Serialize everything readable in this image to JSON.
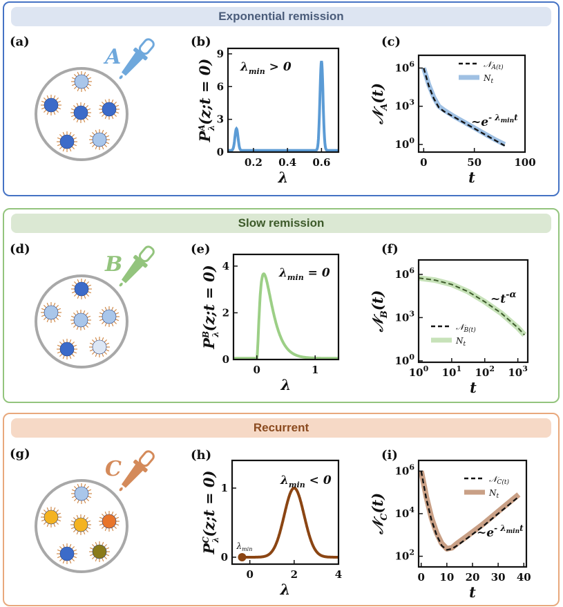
{
  "rows": [
    {
      "banner": "Exponential remission",
      "border": "#4472c4",
      "banner_bg": "#dde5f2",
      "banner_fg": "#4a5c7a",
      "drug_letter": "A",
      "drug_color": "#6fa8dc",
      "cell_colors": [
        "#a9c6ea",
        "#3c6bc9",
        "#3c6bc9",
        "#3c6bc9",
        "#3c6bc9",
        "#a9c6ea"
      ],
      "panel_labels": [
        "(a)",
        "(b)",
        "(c)"
      ],
      "dist_annotation": "λmin > 0",
      "time_annotation": "~e^(-λmin t)",
      "legend": [
        "𝒩A(t)",
        "Nt"
      ]
    },
    {
      "banner": "Slow remission",
      "border": "#93c47d",
      "banner_bg": "#dbe8d3",
      "banner_fg": "#3d5a2a",
      "drug_letter": "B",
      "drug_color": "#93c47d",
      "cell_colors": [
        "#3c6bc9",
        "#a9c6ea",
        "#a9c6ea",
        "#a9c6ea",
        "#3c6bc9",
        "#dde7f5"
      ],
      "panel_labels": [
        "(d)",
        "(e)",
        "(f)"
      ],
      "dist_annotation": "λmin = 0",
      "time_annotation": "~t^(-α)",
      "legend": [
        "𝒩B(t)",
        "Nt"
      ]
    },
    {
      "banner": "Recurrent",
      "border": "#e8a87c",
      "banner_bg": "#f6d9c6",
      "banner_fg": "#8a4a1f",
      "drug_letter": "C",
      "drug_color": "#d48a5a",
      "cell_colors": [
        "#a9c6ea",
        "#f4b321",
        "#f4b321",
        "#e8752a",
        "#3c6bc9",
        "#8a7a1a"
      ],
      "panel_labels": [
        "(g)",
        "(h)",
        "(i)"
      ],
      "dist_annotation": "λmin < 0",
      "time_annotation": "~e^(-λmin t)",
      "legend": [
        "𝒩C(t)",
        "Nt"
      ],
      "lambda_min_marker": "λmin"
    }
  ],
  "chart_data": [
    {
      "id": "b",
      "type": "line",
      "color": "#5b9bd5",
      "xlabel": "λ",
      "ylabel": "P^A_λ(z;t = 0)",
      "xlim": [
        0.05,
        0.7
      ],
      "ylim": [
        0,
        9.5
      ],
      "xticks": [
        0.2,
        0.4,
        0.6
      ],
      "xtick_labels": [
        "0.2",
        "0.4",
        "0.6"
      ],
      "yticks": [
        0,
        3,
        6,
        9
      ],
      "ytick_labels": [
        "0",
        "3",
        "6",
        "9"
      ],
      "peaks": [
        {
          "center": 0.1,
          "height": 2.0
        },
        {
          "center": 0.6,
          "height": 8.2
        }
      ]
    },
    {
      "id": "c",
      "type": "line",
      "scale": "semilog-y",
      "xlabel": "t",
      "ylabel": "𝒩A(t)",
      "xlim": [
        -5,
        100
      ],
      "ylim_log10": [
        -0.6,
        7
      ],
      "xticks": [
        0,
        50,
        100
      ],
      "xtick_labels": [
        "0",
        "50",
        "100"
      ],
      "yticks_log10": [
        0,
        3,
        6
      ],
      "ytick_labels": [
        "10^0",
        "10^3",
        "10^6"
      ],
      "series": [
        {
          "name": "𝒩A(t)",
          "style": "dashed",
          "color": "#111111",
          "x": [
            0,
            5,
            10,
            15,
            20,
            30,
            40,
            50,
            60,
            70,
            80
          ],
          "log10_y": [
            6.0,
            4.6,
            3.6,
            2.9,
            2.6,
            2.15,
            1.7,
            1.25,
            0.8,
            0.35,
            -0.1
          ]
        },
        {
          "name": "Nt",
          "style": "band",
          "color": "#9fc0e3",
          "x": [
            0,
            5,
            10,
            15,
            20,
            30,
            40,
            50,
            60,
            70,
            80
          ],
          "log10_y": [
            6.0,
            4.7,
            3.7,
            3.0,
            2.7,
            2.2,
            1.75,
            1.3,
            0.85,
            0.4,
            0.0
          ]
        }
      ]
    },
    {
      "id": "e",
      "type": "line",
      "color": "#9ccf86",
      "xlabel": "λ",
      "ylabel": "P^B_λ(z;t = 0)",
      "xlim": [
        -0.4,
        1.4
      ],
      "ylim": [
        0,
        4.5
      ],
      "xticks": [
        0,
        1
      ],
      "xtick_labels": [
        "0",
        "1"
      ],
      "yticks": [
        0,
        2,
        4
      ],
      "ytick_labels": [
        "0",
        "2",
        "4"
      ],
      "peak": {
        "start": 0.0,
        "mode": 0.12,
        "height": 3.7
      }
    },
    {
      "id": "f",
      "type": "line",
      "scale": "log-log",
      "xlabel": "t",
      "ylabel": "𝒩B(t)",
      "xlim_log10": [
        0,
        3.3
      ],
      "ylim_log10": [
        -0.1,
        7
      ],
      "xticks_log10": [
        0,
        1,
        2,
        3
      ],
      "xtick_labels": [
        "10^0",
        "10^1",
        "10^2",
        "10^3"
      ],
      "yticks_log10": [
        0,
        3,
        6
      ],
      "ytick_labels": [
        "10^0",
        "10^3",
        "10^6"
      ],
      "series": [
        {
          "name": "𝒩B(t)",
          "style": "dashed",
          "color": "#3d5a2a",
          "log10_x": [
            0,
            0.5,
            1,
            1.5,
            2,
            2.5,
            3,
            3.2
          ],
          "log10_y": [
            5.75,
            5.6,
            5.3,
            4.8,
            4.1,
            3.3,
            2.3,
            1.8
          ]
        },
        {
          "name": "Nt",
          "style": "band",
          "color": "#c7e2b9",
          "log10_x": [
            0,
            0.5,
            1,
            1.5,
            2,
            2.5,
            3,
            3.2
          ],
          "log10_y": [
            5.75,
            5.6,
            5.3,
            4.8,
            4.1,
            3.3,
            2.3,
            1.8
          ]
        }
      ]
    },
    {
      "id": "h",
      "type": "line",
      "color": "#8b4513",
      "xlabel": "λ",
      "ylabel": "P^C_λ(z;t = 0)",
      "xlim": [
        -0.8,
        4
      ],
      "ylim": [
        -0.1,
        1.4
      ],
      "xticks": [
        0,
        2,
        4
      ],
      "xtick_labels": [
        "0",
        "2",
        "4"
      ],
      "yticks": [
        0,
        1
      ],
      "ytick_labels": [
        "0",
        "1"
      ],
      "peak": {
        "center": 2.0,
        "height": 1.0,
        "width": 0.45
      },
      "marker": {
        "x": -0.35,
        "y": 0
      }
    },
    {
      "id": "i",
      "type": "line",
      "scale": "semilog-y",
      "xlabel": "t",
      "ylabel": "𝒩C(t)",
      "xlim": [
        -1,
        41
      ],
      "ylim_log10": [
        1.5,
        6.5
      ],
      "xticks": [
        0,
        10,
        20,
        30,
        40
      ],
      "xtick_labels": [
        "0",
        "10",
        "20",
        "30",
        "40"
      ],
      "yticks_log10": [
        2,
        4,
        6
      ],
      "ytick_labels": [
        "10^2",
        "10^4",
        "10^6"
      ],
      "series": [
        {
          "name": "𝒩C(t)",
          "style": "dashed",
          "color": "#111111",
          "x": [
            0,
            2,
            4,
            6,
            8,
            10,
            12,
            14,
            18,
            24,
            30,
            38
          ],
          "log10_y": [
            6.0,
            4.7,
            3.7,
            3.0,
            2.5,
            2.3,
            2.35,
            2.5,
            2.85,
            3.4,
            4.0,
            4.8
          ]
        },
        {
          "name": "Nt",
          "style": "band",
          "color": "#c9a086",
          "x": [
            0,
            2,
            4,
            6,
            8,
            10,
            12,
            14,
            18,
            24,
            30,
            38
          ],
          "log10_y": [
            6.0,
            4.8,
            3.8,
            3.1,
            2.6,
            2.35,
            2.4,
            2.6,
            2.95,
            3.5,
            4.1,
            4.9
          ]
        }
      ]
    }
  ]
}
